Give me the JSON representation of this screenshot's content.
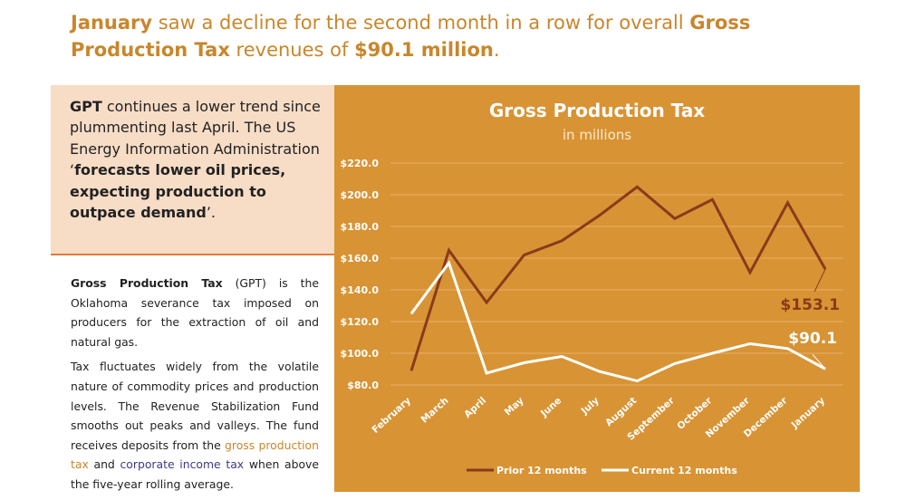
{
  "headline": {
    "p1": "January",
    "p2": " saw a decline for the second month in a row for overall ",
    "p3": "Gross Production Tax",
    "p4": " revenues of ",
    "p5": "$90.1 million",
    "p6": "."
  },
  "callout": {
    "p1": "GPT",
    "p2": " continues a lower trend since plummenting last April. The US Energy Information Administration ‘",
    "p3": "forecasts lower oil prices, expecting production to outpace demand",
    "p4": "’."
  },
  "body": {
    "para1_bold": "Gross Production Tax",
    "para1_rest": " (GPT) is the Oklahoma severance tax imposed on producers for the extraction of oil and natural gas.",
    "para2_a": "Tax fluctuates widely from the volatile nature of commodity prices and production levels. The Revenue Stabilization Fund smooths out peaks and valleys. The fund receives deposits from the ",
    "para2_link1": "gross production tax",
    "para2_b": " and ",
    "para2_link2": "corporate income tax",
    "para2_c": " when above the five-year rolling average."
  },
  "chart_data": {
    "type": "line",
    "title": "Gross Production Tax",
    "subtitle": "in millions",
    "categories": [
      "February",
      "March",
      "April",
      "May",
      "June",
      "July",
      "August",
      "September",
      "October",
      "November",
      "December",
      "January"
    ],
    "series": [
      {
        "name": "Prior 12 months",
        "color": "#8b3a1a",
        "values": [
          89,
          165,
          132,
          162,
          171,
          187,
          205,
          185,
          197,
          151,
          195,
          153.1
        ]
      },
      {
        "name": "Current 12 months",
        "color": "#ffffff",
        "values": [
          125,
          157,
          87.5,
          94,
          98,
          88.5,
          82.5,
          93.5,
          100,
          106,
          103,
          90.1
        ]
      }
    ],
    "yticks": [
      "$80.0",
      "$100.0",
      "$120.0",
      "$140.0",
      "$160.0",
      "$180.0",
      "$200.0",
      "$220.0"
    ],
    "ylim": [
      80,
      220
    ],
    "grid": true,
    "legend_position": "bottom",
    "annotations": [
      {
        "series": 0,
        "text": "$153.1"
      },
      {
        "series": 1,
        "text": "$90.1"
      }
    ]
  },
  "colors": {
    "accent": "#c8862b",
    "panel": "#d89334",
    "callout_bg": "#f7dcc6",
    "link_blue": "#3d3a8a"
  }
}
